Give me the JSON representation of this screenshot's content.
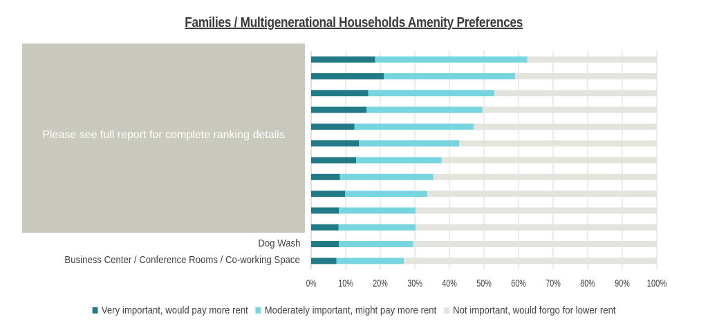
{
  "chart_data": {
    "type": "bar",
    "orientation": "horizontal",
    "stacked": true,
    "title": "Families / Multigenerational Households Amenity Preferences",
    "overlay_text": "Please see full report for complete ranking details",
    "categories": [
      "",
      "",
      "",
      "",
      "",
      "",
      "",
      "",
      "",
      "",
      "",
      "Dog Wash",
      "Business Center / Conference Rooms / Co-working Space"
    ],
    "series": [
      {
        "name": "Very important, would pay more rent",
        "color": "#217a85",
        "values": [
          18.5,
          21,
          16.5,
          16,
          12.5,
          13.8,
          13,
          8.3,
          9.8,
          8,
          7.9,
          8,
          7.3
        ]
      },
      {
        "name": "Moderately important, might pay more rent",
        "color": "#76d5de",
        "values": [
          44,
          38,
          36.5,
          33.5,
          34.5,
          29,
          24.7,
          27,
          23.8,
          22.2,
          22.3,
          21.5,
          19.5
        ]
      },
      {
        "name": "Not important, would forgo for lower rent",
        "color": "#e4e4df",
        "values": [
          37.5,
          41,
          47,
          50.5,
          53,
          57.2,
          62.3,
          64.7,
          66.4,
          69.8,
          69.8,
          70.5,
          73.2
        ]
      }
    ],
    "xlim": [
      0,
      100
    ],
    "xticks": [
      "0%",
      "10%",
      "20%",
      "30%",
      "40%",
      "50%",
      "60%",
      "70%",
      "80%",
      "90%",
      "100%"
    ],
    "grid": true,
    "legend_position": "bottom"
  }
}
